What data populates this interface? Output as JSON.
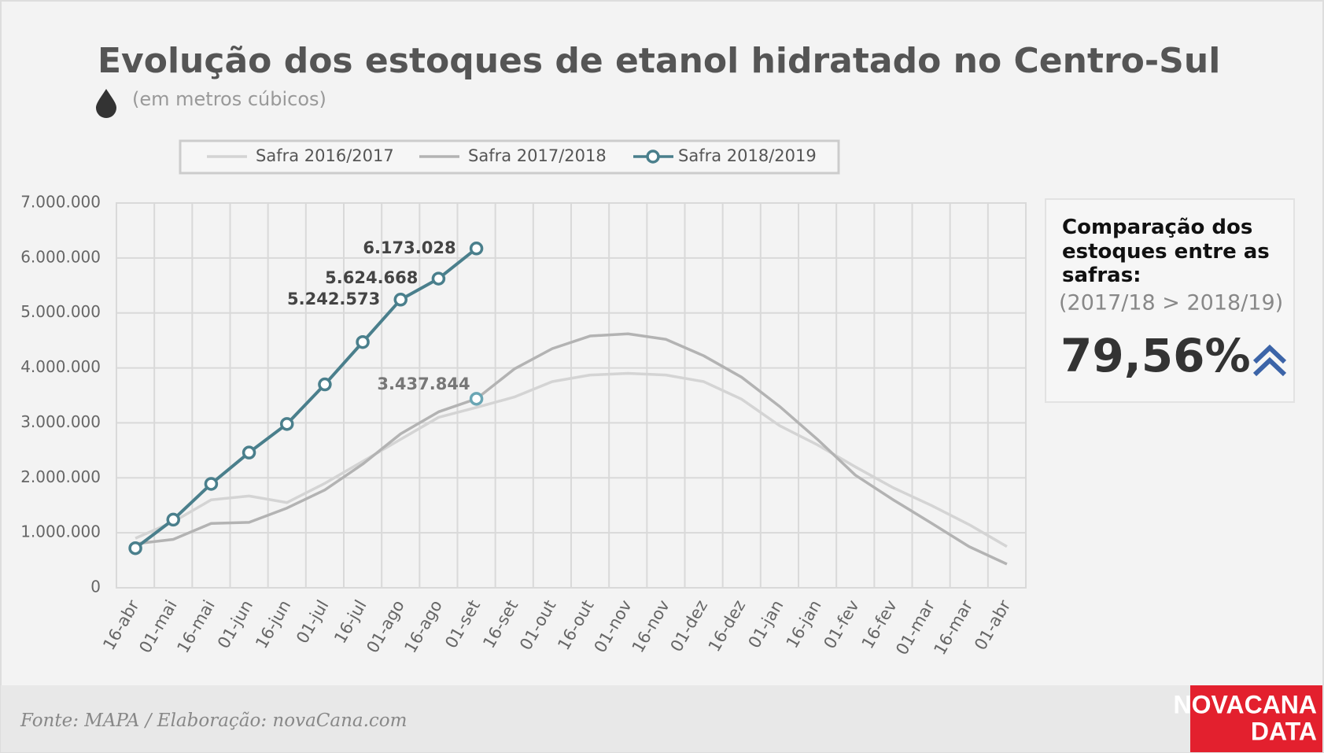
{
  "chart_data": {
    "type": "line",
    "title": "Evolução dos estoques de etanol hidratado no Centro-Sul",
    "subtitle": "(em metros cúbicos)",
    "categories": [
      "16-abr",
      "01-mai",
      "16-mai",
      "01-jun",
      "16-jun",
      "01-jul",
      "16-jul",
      "01-ago",
      "16-ago",
      "01-set",
      "16-set",
      "01-out",
      "16-out",
      "01-nov",
      "16-nov",
      "01-dez",
      "16-dez",
      "01-jan",
      "16-jan",
      "01-fev",
      "16-fev",
      "01-mar",
      "16-mar",
      "01-abr"
    ],
    "series": [
      {
        "name": "Safra 2016/2017",
        "color": "#d4d4d4",
        "values": [
          900000,
          1200000,
          1600000,
          1670000,
          1550000,
          1900000,
          2300000,
          2700000,
          3100000,
          3280000,
          3470000,
          3750000,
          3870000,
          3900000,
          3870000,
          3750000,
          3430000,
          2950000,
          2600000,
          2200000,
          1820000,
          1500000,
          1150000,
          750000
        ]
      },
      {
        "name": "Safra 2017/2018",
        "color": "#b3b3b3",
        "values": [
          800000,
          880000,
          1170000,
          1190000,
          1450000,
          1780000,
          2250000,
          2800000,
          3200000,
          3437844,
          3980000,
          4350000,
          4580000,
          4620000,
          4520000,
          4220000,
          3830000,
          3300000,
          2700000,
          2050000,
          1600000,
          1180000,
          750000,
          430000
        ],
        "value_labels": [
          null,
          null,
          null,
          null,
          null,
          null,
          null,
          null,
          null,
          "3.437.844",
          null,
          null,
          null,
          null,
          null,
          null,
          null,
          null,
          null,
          null,
          null,
          null,
          null,
          null
        ]
      },
      {
        "name": "Safra 2018/2019",
        "color": "#4a7f8c",
        "values": [
          720000,
          1240000,
          1890000,
          2460000,
          2980000,
          3700000,
          4470000,
          5242573,
          5624668,
          6173028,
          null,
          null,
          null,
          null,
          null,
          null,
          null,
          null,
          null,
          null,
          null,
          null,
          null,
          null
        ],
        "value_labels": [
          null,
          null,
          null,
          null,
          null,
          null,
          null,
          "5.242.573",
          "5.624.668",
          "6.173.028",
          null,
          null,
          null,
          null,
          null,
          null,
          null,
          null,
          null,
          null,
          null,
          null,
          null,
          null
        ]
      }
    ],
    "ylim": [
      0,
      7000000
    ],
    "yticks": [
      0,
      {
        "value": 1000000,
        "label": "1.000.000"
      },
      {
        "value": 2000000,
        "label": "2.000.000"
      },
      {
        "value": 3000000,
        "label": "3.000.000"
      },
      {
        "value": 4000000,
        "label": "4.000.000"
      },
      {
        "value": 5000000,
        "label": "5.000.000"
      },
      {
        "value": 6000000,
        "label": "6.000.000"
      },
      {
        "value": 7000000,
        "label": "7.000.000"
      }
    ],
    "grid": true,
    "legend": "top"
  },
  "panel": {
    "heading": "Comparação dos estoques entre as safras:",
    "comparison": "(2017/18 > 2018/19)",
    "value": "79,56%"
  },
  "footer": {
    "source": "Fonte: MAPA  / Elaboração: novaCana.com",
    "logo": [
      "NOVACANA",
      "DATA"
    ]
  }
}
